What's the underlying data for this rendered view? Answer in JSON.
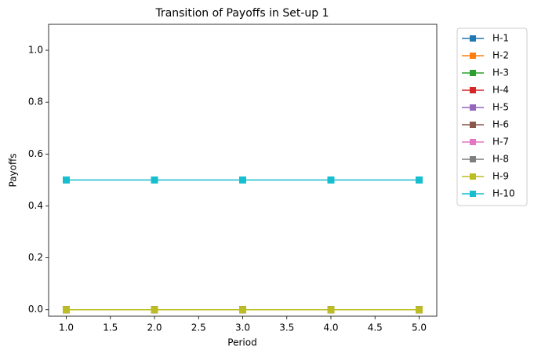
{
  "chart_data": {
    "type": "line",
    "title": "Transition of Payoffs in Set-up 1",
    "xlabel": "Period",
    "ylabel": "Payoffs",
    "x": [
      1,
      2,
      3,
      4,
      5
    ],
    "series": [
      {
        "name": "H-1",
        "color": "#1f77b4",
        "values": [
          0,
          0,
          0,
          0,
          0
        ]
      },
      {
        "name": "H-2",
        "color": "#ff7f0e",
        "values": [
          0,
          0,
          0,
          0,
          0
        ]
      },
      {
        "name": "H-3",
        "color": "#2ca02c",
        "values": [
          0,
          0,
          0,
          0,
          0
        ]
      },
      {
        "name": "H-4",
        "color": "#d62728",
        "values": [
          0,
          0,
          0,
          0,
          0
        ]
      },
      {
        "name": "H-5",
        "color": "#9467bd",
        "values": [
          0,
          0,
          0,
          0,
          0
        ]
      },
      {
        "name": "H-6",
        "color": "#8c564b",
        "values": [
          0,
          0,
          0,
          0,
          0
        ]
      },
      {
        "name": "H-7",
        "color": "#e377c2",
        "values": [
          0,
          0,
          0,
          0,
          0
        ]
      },
      {
        "name": "H-8",
        "color": "#7f7f7f",
        "values": [
          0,
          0,
          0,
          0,
          0
        ]
      },
      {
        "name": "H-9",
        "color": "#bcbd22",
        "values": [
          0,
          0,
          0,
          0,
          0
        ]
      },
      {
        "name": "H-10",
        "color": "#17becf",
        "values": [
          0.5,
          0.5,
          0.5,
          0.5,
          0.5
        ]
      }
    ],
    "xlim": [
      0.8,
      5.2
    ],
    "xticks": [
      {
        "value": 1,
        "label": "1.0"
      },
      1.5,
      {
        "value": 2,
        "label": "2.0"
      },
      2.5,
      {
        "value": 3,
        "label": "3.0"
      },
      3.5,
      {
        "value": 4,
        "label": "4.0"
      },
      4.5,
      {
        "value": 5,
        "label": "5.0"
      }
    ],
    "ylim": [
      -0.025,
      1.1
    ],
    "yticks": [
      {
        "value": 0,
        "label": "0.0"
      },
      0.2,
      0.4,
      0.6,
      0.8,
      {
        "value": 1,
        "label": "1.0"
      }
    ],
    "legend": "outside-upper-right"
  }
}
